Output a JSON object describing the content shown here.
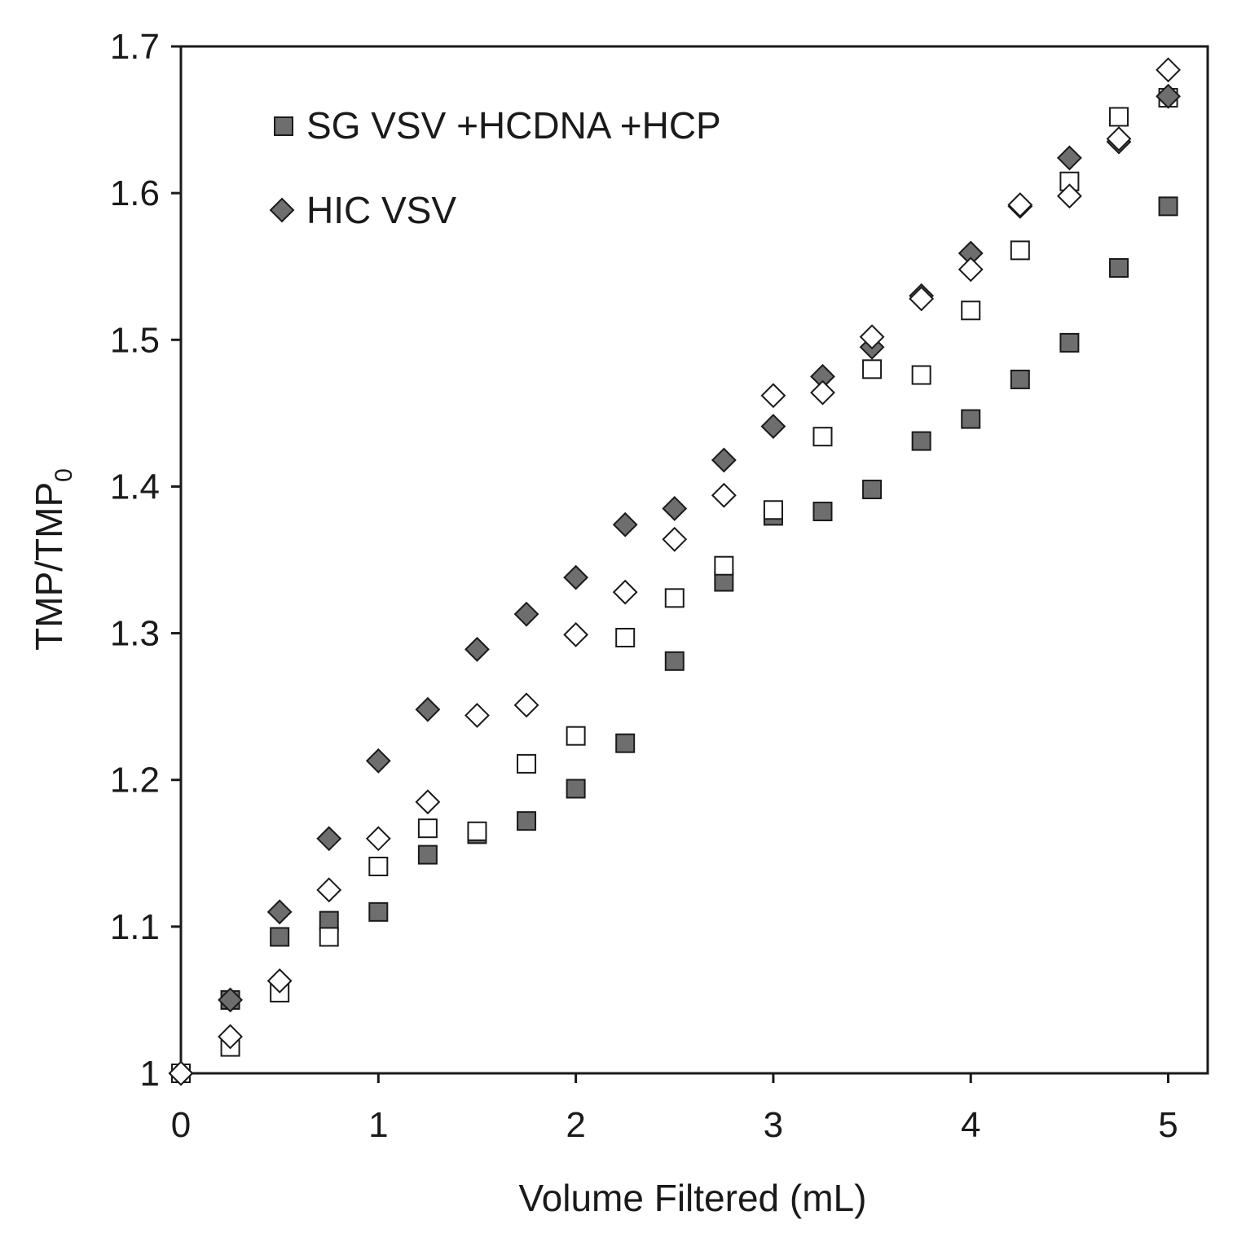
{
  "chart_data": {
    "type": "scatter",
    "title": "",
    "xlabel": "Volume Filtered (mL)",
    "ylabel": "TMP/TMP",
    "ylabel_subscript": "0",
    "xlim": [
      0,
      5.2
    ],
    "ylim": [
      1.0,
      1.7
    ],
    "xticks": [
      0,
      1,
      2,
      3,
      4,
      5
    ],
    "xtick_labels": [
      "0",
      "1",
      "2",
      "3",
      "4",
      "5"
    ],
    "yticks": [
      1.0,
      1.1,
      1.2,
      1.3,
      1.4,
      1.5,
      1.6,
      1.7
    ],
    "ytick_labels": [
      "1",
      "1.1",
      "1.2",
      "1.3",
      "1.4",
      "1.5",
      "1.6",
      "1.7"
    ],
    "grid": false,
    "legend_position": "top-left",
    "legend": [
      {
        "label": "SG VSV +HCDNA +HCP",
        "marker": "square",
        "fill": "#6e6e6e"
      },
      {
        "label": "HIC VSV",
        "marker": "diamond",
        "fill": "#6e6e6e"
      }
    ],
    "series": [
      {
        "name": "SG VSV +HCDNA +HCP (filled)",
        "marker": "square",
        "fill": "#6e6e6e",
        "stroke": "#1a1a1a",
        "x": [
          0,
          0.25,
          0.5,
          0.75,
          1.0,
          1.25,
          1.5,
          1.75,
          2.0,
          2.25,
          2.5,
          2.75,
          3.0,
          3.25,
          3.5,
          3.75,
          4.0,
          4.25,
          4.5,
          4.75,
          5.0
        ],
        "y": [
          1.0,
          1.05,
          1.093,
          1.104,
          1.11,
          1.149,
          1.163,
          1.172,
          1.194,
          1.225,
          1.281,
          1.335,
          1.38,
          1.383,
          1.398,
          1.431,
          1.446,
          1.473,
          1.498,
          1.549,
          1.591
        ]
      },
      {
        "name": "SG VSV +HCDNA +HCP (open)",
        "marker": "square",
        "fill": "#ffffff",
        "stroke": "#1a1a1a",
        "x": [
          0,
          0.25,
          0.5,
          0.75,
          1.0,
          1.25,
          1.5,
          1.75,
          2.0,
          2.25,
          2.5,
          2.75,
          3.0,
          3.25,
          3.5,
          3.75,
          4.0,
          4.25,
          4.5,
          4.75,
          5.0
        ],
        "y": [
          1.0,
          1.018,
          1.055,
          1.093,
          1.141,
          1.167,
          1.165,
          1.211,
          1.23,
          1.297,
          1.324,
          1.346,
          1.384,
          1.434,
          1.48,
          1.476,
          1.52,
          1.561,
          1.608,
          1.652,
          1.665
        ]
      },
      {
        "name": "HIC VSV (filled)",
        "marker": "diamond",
        "fill": "#6e6e6e",
        "stroke": "#1a1a1a",
        "x": [
          0,
          0.25,
          0.5,
          0.75,
          1.0,
          1.25,
          1.5,
          1.75,
          2.0,
          2.25,
          2.5,
          2.75,
          3.0,
          3.25,
          3.5,
          3.75,
          4.0,
          4.25,
          4.5,
          4.75,
          5.0
        ],
        "y": [
          1.0,
          1.05,
          1.11,
          1.16,
          1.213,
          1.248,
          1.289,
          1.313,
          1.338,
          1.374,
          1.385,
          1.418,
          1.441,
          1.475,
          1.495,
          1.53,
          1.559,
          1.591,
          1.624,
          1.635,
          1.666
        ]
      },
      {
        "name": "HIC VSV (open)",
        "marker": "diamond",
        "fill": "#ffffff",
        "stroke": "#1a1a1a",
        "x": [
          0,
          0.25,
          0.5,
          0.75,
          1.0,
          1.25,
          1.5,
          1.75,
          2.0,
          2.25,
          2.5,
          2.75,
          3.0,
          3.25,
          3.5,
          3.75,
          4.0,
          4.25,
          4.5,
          4.75,
          5.0
        ],
        "y": [
          1.0,
          1.025,
          1.063,
          1.125,
          1.16,
          1.185,
          1.244,
          1.251,
          1.299,
          1.328,
          1.364,
          1.394,
          1.462,
          1.464,
          1.502,
          1.528,
          1.548,
          1.592,
          1.598,
          1.637,
          1.684
        ]
      }
    ]
  }
}
